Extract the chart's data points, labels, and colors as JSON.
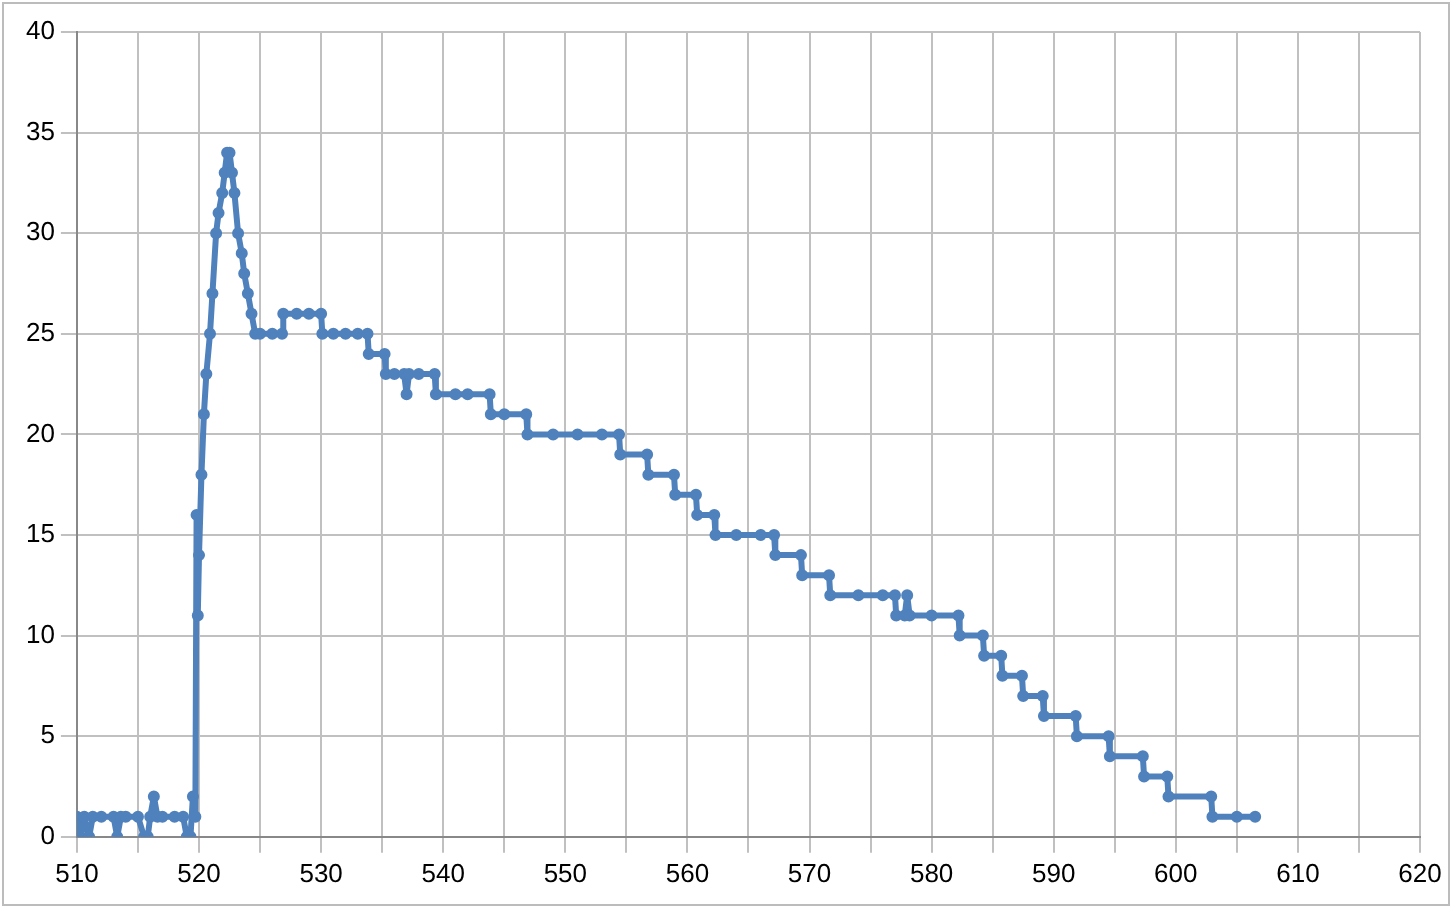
{
  "chart_data": {
    "type": "line",
    "xlim": [
      510,
      620
    ],
    "ylim": [
      0,
      40
    ],
    "xticks": [
      510,
      {
        "value": 515,
        "label": null
      },
      520,
      {
        "value": 525,
        "label": null
      },
      530,
      {
        "value": 535,
        "label": null
      },
      540,
      {
        "value": 545,
        "label": null
      },
      550,
      {
        "value": 555,
        "label": null
      },
      560,
      {
        "value": 565,
        "label": null
      },
      570,
      {
        "value": 575,
        "label": null
      },
      580,
      {
        "value": 585,
        "label": null
      },
      590,
      {
        "value": 595,
        "label": null
      },
      600,
      {
        "value": 605,
        "label": null
      },
      610,
      {
        "value": 615,
        "label": null
      },
      620
    ],
    "yticks": [
      0,
      5,
      10,
      15,
      20,
      25,
      30,
      35,
      40
    ],
    "grid": true,
    "legend": false,
    "marker": "circle",
    "line_style": "solid",
    "series": [
      {
        "color": "#4f81bd",
        "x": [
          510,
          510.3,
          510.6,
          511,
          511.3,
          512,
          513,
          513.3,
          513.6,
          514,
          515,
          515.5,
          515.8,
          516,
          516.3,
          516.6,
          517,
          518,
          518.7,
          519,
          519.3,
          519.5,
          519.7,
          519.8,
          519.9,
          520,
          520.2,
          520.4,
          520.6,
          520.9,
          521.1,
          521.4,
          521.6,
          521.9,
          522.1,
          522.3,
          522.5,
          522.7,
          522.9,
          523.2,
          523.5,
          523.7,
          524,
          524.3,
          524.6,
          525,
          526,
          526.8,
          526.9,
          528,
          529,
          530,
          530.1,
          531,
          532,
          533,
          533.8,
          533.9,
          535.2,
          535.3,
          536,
          536.8,
          537,
          537.2,
          538,
          539.3,
          539.4,
          541,
          542,
          543.8,
          543.9,
          545,
          546.8,
          546.9,
          549,
          551,
          553,
          554.4,
          554.5,
          556.7,
          556.8,
          558.9,
          559,
          560.7,
          560.8,
          562.2,
          562.3,
          564,
          566,
          567.1,
          567.2,
          569.3,
          569.4,
          571.6,
          571.7,
          574,
          576,
          577,
          577.1,
          577.8,
          578,
          578.2,
          580,
          582.2,
          582.3,
          584.2,
          584.3,
          585.7,
          585.8,
          587.4,
          587.5,
          589.1,
          589.2,
          591.8,
          591.9,
          594.5,
          594.6,
          597.3,
          597.4,
          599.3,
          599.4,
          602.9,
          603,
          605,
          606.5
        ],
        "values": [
          1,
          0,
          1,
          0,
          1,
          1,
          1,
          0,
          1,
          1,
          1,
          0,
          0,
          1,
          2,
          1,
          1,
          1,
          1,
          0,
          0,
          2,
          1,
          16,
          11,
          14,
          18,
          21,
          23,
          25,
          27,
          30,
          31,
          32,
          33,
          34,
          34,
          33,
          32,
          30,
          29,
          28,
          27,
          26,
          25,
          25,
          25,
          25,
          26,
          26,
          26,
          26,
          25,
          25,
          25,
          25,
          25,
          24,
          24,
          23,
          23,
          23,
          22,
          23,
          23,
          23,
          22,
          22,
          22,
          22,
          21,
          21,
          21,
          20,
          20,
          20,
          20,
          20,
          19,
          19,
          18,
          18,
          17,
          17,
          16,
          16,
          15,
          15,
          15,
          15,
          14,
          14,
          13,
          13,
          12,
          12,
          12,
          12,
          11,
          11,
          12,
          11,
          11,
          11,
          10,
          10,
          9,
          9,
          8,
          8,
          7,
          7,
          6,
          6,
          5,
          5,
          4,
          4,
          3,
          3,
          2,
          2,
          1,
          1,
          1
        ]
      }
    ]
  }
}
